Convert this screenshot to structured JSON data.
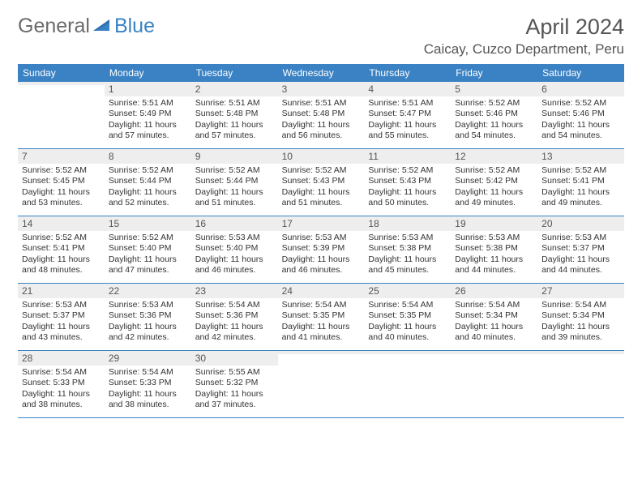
{
  "logo": {
    "general": "General",
    "blue": "Blue"
  },
  "title": "April 2024",
  "location": "Caicay, Cuzco Department, Peru",
  "day_headers": [
    "Sunday",
    "Monday",
    "Tuesday",
    "Wednesday",
    "Thursday",
    "Friday",
    "Saturday"
  ],
  "header_bg": "#3a82c4",
  "daynum_bg": "#eeeeee",
  "border_color": "#3a82c4",
  "weeks": [
    [
      {
        "day": "",
        "sunrise": "",
        "sunset": "",
        "daylight": ""
      },
      {
        "day": "1",
        "sunrise": "Sunrise: 5:51 AM",
        "sunset": "Sunset: 5:49 PM",
        "daylight": "Daylight: 11 hours and 57 minutes."
      },
      {
        "day": "2",
        "sunrise": "Sunrise: 5:51 AM",
        "sunset": "Sunset: 5:48 PM",
        "daylight": "Daylight: 11 hours and 57 minutes."
      },
      {
        "day": "3",
        "sunrise": "Sunrise: 5:51 AM",
        "sunset": "Sunset: 5:48 PM",
        "daylight": "Daylight: 11 hours and 56 minutes."
      },
      {
        "day": "4",
        "sunrise": "Sunrise: 5:51 AM",
        "sunset": "Sunset: 5:47 PM",
        "daylight": "Daylight: 11 hours and 55 minutes."
      },
      {
        "day": "5",
        "sunrise": "Sunrise: 5:52 AM",
        "sunset": "Sunset: 5:46 PM",
        "daylight": "Daylight: 11 hours and 54 minutes."
      },
      {
        "day": "6",
        "sunrise": "Sunrise: 5:52 AM",
        "sunset": "Sunset: 5:46 PM",
        "daylight": "Daylight: 11 hours and 54 minutes."
      }
    ],
    [
      {
        "day": "7",
        "sunrise": "Sunrise: 5:52 AM",
        "sunset": "Sunset: 5:45 PM",
        "daylight": "Daylight: 11 hours and 53 minutes."
      },
      {
        "day": "8",
        "sunrise": "Sunrise: 5:52 AM",
        "sunset": "Sunset: 5:44 PM",
        "daylight": "Daylight: 11 hours and 52 minutes."
      },
      {
        "day": "9",
        "sunrise": "Sunrise: 5:52 AM",
        "sunset": "Sunset: 5:44 PM",
        "daylight": "Daylight: 11 hours and 51 minutes."
      },
      {
        "day": "10",
        "sunrise": "Sunrise: 5:52 AM",
        "sunset": "Sunset: 5:43 PM",
        "daylight": "Daylight: 11 hours and 51 minutes."
      },
      {
        "day": "11",
        "sunrise": "Sunrise: 5:52 AM",
        "sunset": "Sunset: 5:43 PM",
        "daylight": "Daylight: 11 hours and 50 minutes."
      },
      {
        "day": "12",
        "sunrise": "Sunrise: 5:52 AM",
        "sunset": "Sunset: 5:42 PM",
        "daylight": "Daylight: 11 hours and 49 minutes."
      },
      {
        "day": "13",
        "sunrise": "Sunrise: 5:52 AM",
        "sunset": "Sunset: 5:41 PM",
        "daylight": "Daylight: 11 hours and 49 minutes."
      }
    ],
    [
      {
        "day": "14",
        "sunrise": "Sunrise: 5:52 AM",
        "sunset": "Sunset: 5:41 PM",
        "daylight": "Daylight: 11 hours and 48 minutes."
      },
      {
        "day": "15",
        "sunrise": "Sunrise: 5:52 AM",
        "sunset": "Sunset: 5:40 PM",
        "daylight": "Daylight: 11 hours and 47 minutes."
      },
      {
        "day": "16",
        "sunrise": "Sunrise: 5:53 AM",
        "sunset": "Sunset: 5:40 PM",
        "daylight": "Daylight: 11 hours and 46 minutes."
      },
      {
        "day": "17",
        "sunrise": "Sunrise: 5:53 AM",
        "sunset": "Sunset: 5:39 PM",
        "daylight": "Daylight: 11 hours and 46 minutes."
      },
      {
        "day": "18",
        "sunrise": "Sunrise: 5:53 AM",
        "sunset": "Sunset: 5:38 PM",
        "daylight": "Daylight: 11 hours and 45 minutes."
      },
      {
        "day": "19",
        "sunrise": "Sunrise: 5:53 AM",
        "sunset": "Sunset: 5:38 PM",
        "daylight": "Daylight: 11 hours and 44 minutes."
      },
      {
        "day": "20",
        "sunrise": "Sunrise: 5:53 AM",
        "sunset": "Sunset: 5:37 PM",
        "daylight": "Daylight: 11 hours and 44 minutes."
      }
    ],
    [
      {
        "day": "21",
        "sunrise": "Sunrise: 5:53 AM",
        "sunset": "Sunset: 5:37 PM",
        "daylight": "Daylight: 11 hours and 43 minutes."
      },
      {
        "day": "22",
        "sunrise": "Sunrise: 5:53 AM",
        "sunset": "Sunset: 5:36 PM",
        "daylight": "Daylight: 11 hours and 42 minutes."
      },
      {
        "day": "23",
        "sunrise": "Sunrise: 5:54 AM",
        "sunset": "Sunset: 5:36 PM",
        "daylight": "Daylight: 11 hours and 42 minutes."
      },
      {
        "day": "24",
        "sunrise": "Sunrise: 5:54 AM",
        "sunset": "Sunset: 5:35 PM",
        "daylight": "Daylight: 11 hours and 41 minutes."
      },
      {
        "day": "25",
        "sunrise": "Sunrise: 5:54 AM",
        "sunset": "Sunset: 5:35 PM",
        "daylight": "Daylight: 11 hours and 40 minutes."
      },
      {
        "day": "26",
        "sunrise": "Sunrise: 5:54 AM",
        "sunset": "Sunset: 5:34 PM",
        "daylight": "Daylight: 11 hours and 40 minutes."
      },
      {
        "day": "27",
        "sunrise": "Sunrise: 5:54 AM",
        "sunset": "Sunset: 5:34 PM",
        "daylight": "Daylight: 11 hours and 39 minutes."
      }
    ],
    [
      {
        "day": "28",
        "sunrise": "Sunrise: 5:54 AM",
        "sunset": "Sunset: 5:33 PM",
        "daylight": "Daylight: 11 hours and 38 minutes."
      },
      {
        "day": "29",
        "sunrise": "Sunrise: 5:54 AM",
        "sunset": "Sunset: 5:33 PM",
        "daylight": "Daylight: 11 hours and 38 minutes."
      },
      {
        "day": "30",
        "sunrise": "Sunrise: 5:55 AM",
        "sunset": "Sunset: 5:32 PM",
        "daylight": "Daylight: 11 hours and 37 minutes."
      },
      {
        "day": "",
        "sunrise": "",
        "sunset": "",
        "daylight": ""
      },
      {
        "day": "",
        "sunrise": "",
        "sunset": "",
        "daylight": ""
      },
      {
        "day": "",
        "sunrise": "",
        "sunset": "",
        "daylight": ""
      },
      {
        "day": "",
        "sunrise": "",
        "sunset": "",
        "daylight": ""
      }
    ]
  ]
}
